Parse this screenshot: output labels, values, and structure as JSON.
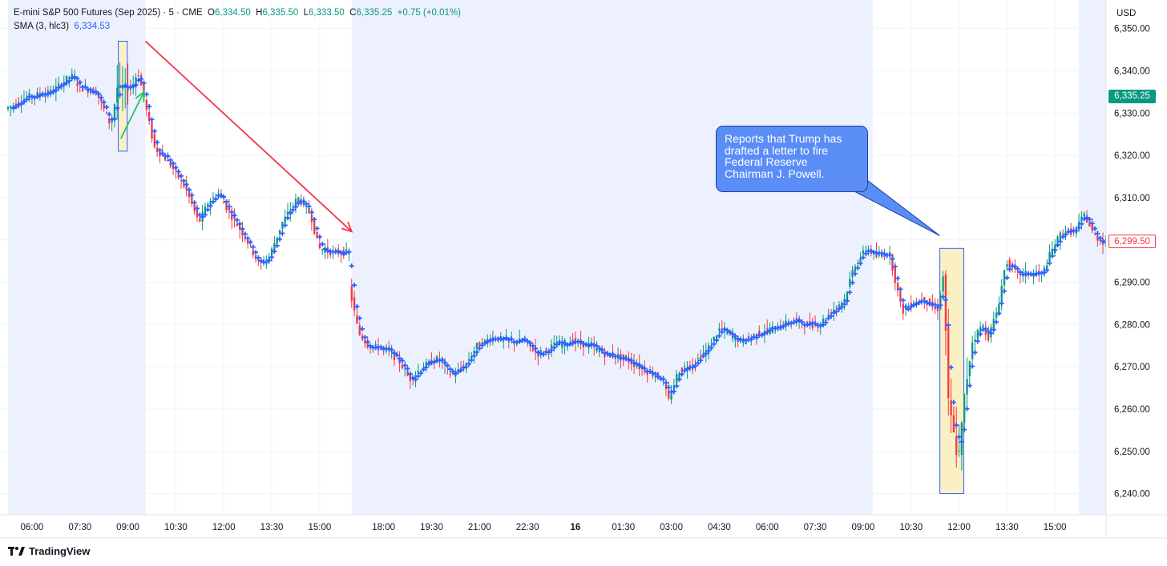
{
  "header": {
    "symbol": "E-mini S&P 500 Futures (Sep 2025) · 5 · CME",
    "o_label": "O",
    "o_value": "6,334.50",
    "h_label": "H",
    "h_value": "6,335.50",
    "l_label": "L",
    "l_value": "6,333.50",
    "c_label": "C",
    "c_value": "6,335.25",
    "change": "+0.75 (+0.01%)",
    "sma_label": "SMA (3, hlc3)",
    "sma_value": "6,334.53"
  },
  "currency": "USD",
  "price_labels": {
    "current": "6,335.25",
    "marker": "6,299.50"
  },
  "annotation": {
    "text": "Reports that Trump has drafted a letter to fire Federal Reserve Chairman J. Powell."
  },
  "branding": {
    "name": "TradingView"
  },
  "colors": {
    "up": "#089981",
    "down": "#f23645",
    "sma": "#2962ff",
    "session_shade": "#edf1fd",
    "highlight": "#faf0c4",
    "highlight_border": "#2962ff",
    "trend_arrow": "#f23645",
    "up_arrow": "#22c55e",
    "callout": "#5b8df6"
  },
  "chart_data": {
    "type": "candlestick",
    "interval": "5",
    "ylim": [
      6235,
      6356
    ],
    "y_ticks": [
      6240,
      6250,
      6260,
      6270,
      6280,
      6290,
      6300,
      6310,
      6320,
      6330,
      6340,
      6350
    ],
    "y_tick_labels": [
      "6,240.00",
      "6,250.00",
      "6,260.00",
      "6,270.00",
      "6,280.00",
      "6,290.00",
      "6,300.00",
      "6,310.00",
      "6,320.00",
      "6,330.00",
      "6,340.00",
      "6,350.00"
    ],
    "x_tick_labels": [
      "06:00",
      "07:30",
      "09:00",
      "10:30",
      "12:00",
      "13:30",
      "15:00",
      "18:00",
      "19:30",
      "21:00",
      "22:30",
      "16",
      "01:30",
      "03:00",
      "04:30",
      "06:00",
      "07:30",
      "09:00",
      "10:30",
      "12:00",
      "13:30",
      "15:00"
    ],
    "x_tick_hours": [
      6,
      7.5,
      9,
      10.5,
      12,
      13.5,
      15,
      18,
      19.5,
      21,
      22.5,
      24,
      25.5,
      27,
      28.5,
      30,
      31.5,
      33,
      34.5,
      36,
      37.5,
      39
    ],
    "session_gap": {
      "close_hour": 16,
      "open_hour": 17
    },
    "shaded_sessions_hours": [
      [
        5.25,
        9.5
      ],
      [
        17,
        33.25
      ],
      [
        39.75,
        40.6
      ]
    ],
    "price_path": [
      {
        "t": 5.25,
        "p": 6331
      },
      {
        "t": 6.0,
        "p": 6334
      },
      {
        "t": 6.7,
        "p": 6335
      },
      {
        "t": 7.3,
        "p": 6339
      },
      {
        "t": 7.6,
        "p": 6336
      },
      {
        "t": 8.1,
        "p": 6335
      },
      {
        "t": 8.55,
        "p": 6327
      },
      {
        "t": 8.75,
        "p": 6336
      },
      {
        "t": 9.2,
        "p": 6336
      },
      {
        "t": 9.4,
        "p": 6340
      },
      {
        "t": 9.6,
        "p": 6333
      },
      {
        "t": 9.9,
        "p": 6322
      },
      {
        "t": 10.4,
        "p": 6318
      },
      {
        "t": 10.9,
        "p": 6312
      },
      {
        "t": 11.3,
        "p": 6304
      },
      {
        "t": 11.6,
        "p": 6309
      },
      {
        "t": 11.9,
        "p": 6311
      },
      {
        "t": 12.3,
        "p": 6306
      },
      {
        "t": 12.8,
        "p": 6300
      },
      {
        "t": 13.2,
        "p": 6294
      },
      {
        "t": 13.5,
        "p": 6296
      },
      {
        "t": 13.9,
        "p": 6304
      },
      {
        "t": 14.4,
        "p": 6310
      },
      {
        "t": 14.8,
        "p": 6306
      },
      {
        "t": 15.05,
        "p": 6298
      },
      {
        "t": 15.5,
        "p": 6297
      },
      {
        "t": 15.95,
        "p": 6297
      },
      {
        "t": 17.0,
        "p": 6289
      },
      {
        "t": 17.3,
        "p": 6278
      },
      {
        "t": 17.6,
        "p": 6275
      },
      {
        "t": 18.2,
        "p": 6274
      },
      {
        "t": 18.6,
        "p": 6271
      },
      {
        "t": 18.9,
        "p": 6267
      },
      {
        "t": 19.3,
        "p": 6270
      },
      {
        "t": 19.8,
        "p": 6272
      },
      {
        "t": 20.2,
        "p": 6268
      },
      {
        "t": 20.6,
        "p": 6270
      },
      {
        "t": 21.0,
        "p": 6275
      },
      {
        "t": 21.5,
        "p": 6277
      },
      {
        "t": 22.0,
        "p": 6276
      },
      {
        "t": 22.5,
        "p": 6276
      },
      {
        "t": 22.9,
        "p": 6273
      },
      {
        "t": 23.4,
        "p": 6275
      },
      {
        "t": 24.0,
        "p": 6276
      },
      {
        "t": 24.5,
        "p": 6275
      },
      {
        "t": 25.0,
        "p": 6273
      },
      {
        "t": 25.6,
        "p": 6272
      },
      {
        "t": 26.3,
        "p": 6269
      },
      {
        "t": 26.8,
        "p": 6267
      },
      {
        "t": 27.0,
        "p": 6262
      },
      {
        "t": 27.3,
        "p": 6269
      },
      {
        "t": 27.8,
        "p": 6271
      },
      {
        "t": 28.2,
        "p": 6274
      },
      {
        "t": 28.6,
        "p": 6279
      },
      {
        "t": 29.0,
        "p": 6277
      },
      {
        "t": 29.3,
        "p": 6276
      },
      {
        "t": 29.8,
        "p": 6278
      },
      {
        "t": 30.3,
        "p": 6279
      },
      {
        "t": 30.9,
        "p": 6281
      },
      {
        "t": 31.3,
        "p": 6280
      },
      {
        "t": 31.7,
        "p": 6280
      },
      {
        "t": 32.2,
        "p": 6284
      },
      {
        "t": 32.5,
        "p": 6286
      },
      {
        "t": 32.8,
        "p": 6294
      },
      {
        "t": 33.2,
        "p": 6298
      },
      {
        "t": 33.5,
        "p": 6296
      },
      {
        "t": 33.9,
        "p": 6297
      },
      {
        "t": 34.1,
        "p": 6290
      },
      {
        "t": 34.3,
        "p": 6283
      },
      {
        "t": 34.6,
        "p": 6285
      },
      {
        "t": 35.0,
        "p": 6286
      },
      {
        "t": 35.4,
        "p": 6283
      },
      {
        "t": 35.6,
        "p": 6292
      },
      {
        "t": 35.75,
        "p": 6262
      },
      {
        "t": 35.9,
        "p": 6255
      },
      {
        "t": 36.05,
        "p": 6247
      },
      {
        "t": 36.25,
        "p": 6263
      },
      {
        "t": 36.5,
        "p": 6276
      },
      {
        "t": 36.8,
        "p": 6280
      },
      {
        "t": 37.0,
        "p": 6277
      },
      {
        "t": 37.3,
        "p": 6284
      },
      {
        "t": 37.55,
        "p": 6295
      },
      {
        "t": 37.9,
        "p": 6292
      },
      {
        "t": 38.3,
        "p": 6292
      },
      {
        "t": 38.7,
        "p": 6292
      },
      {
        "t": 38.95,
        "p": 6297
      },
      {
        "t": 39.3,
        "p": 6302
      },
      {
        "t": 39.7,
        "p": 6302
      },
      {
        "t": 40.0,
        "p": 6306
      },
      {
        "t": 40.3,
        "p": 6301
      },
      {
        "t": 40.6,
        "p": 6299.5
      }
    ],
    "highlight_boxes": [
      {
        "t0": 8.7,
        "t1": 8.98,
        "p0": 6321,
        "p1": 6347
      },
      {
        "t0": 35.4,
        "t1": 36.15,
        "p0": 6240,
        "p1": 6298
      }
    ],
    "trend_arrow": {
      "t0": 9.55,
      "p0": 6347,
      "t1": 16.2,
      "p1": 6302
    },
    "up_arrow": {
      "t0": 8.78,
      "p0": 6324,
      "t1": 9.5,
      "p1": 6335
    },
    "callout_pointer": {
      "t": 35.4,
      "p": 6301
    }
  }
}
